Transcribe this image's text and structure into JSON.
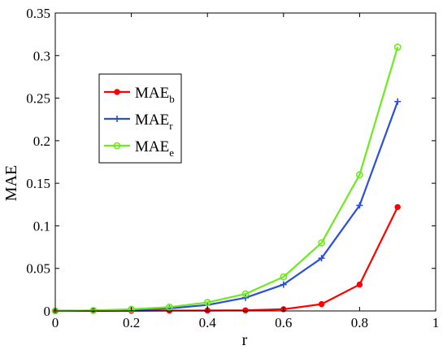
{
  "chart_data": {
    "type": "line",
    "xlabel": "r",
    "ylabel": "MAE",
    "xlim": [
      0,
      1
    ],
    "ylim": [
      0,
      0.35
    ],
    "x_ticks": [
      0,
      0.2,
      0.4,
      0.6,
      0.8,
      1
    ],
    "x_tick_labels": [
      "0",
      "0.2",
      "0.4",
      "0.6",
      "0.8",
      "1"
    ],
    "y_ticks": [
      0,
      0.05,
      0.1,
      0.15,
      0.2,
      0.25,
      0.3,
      0.35
    ],
    "y_tick_labels": [
      "0",
      "0.05",
      "0.1",
      "0.15",
      "0.2",
      "0.25",
      "0.3",
      "0.35"
    ],
    "x": [
      0,
      0.1,
      0.2,
      0.3,
      0.4,
      0.5,
      0.6,
      0.7,
      0.8,
      0.9
    ],
    "series": [
      {
        "name_main": "MAE",
        "name_sub": "b",
        "color": "#ff0000",
        "marker": "dot",
        "values": [
          0,
          0,
          0.0002,
          0.0004,
          0.0005,
          0.0007,
          0.002,
          0.008,
          0.031,
          0.122
        ]
      },
      {
        "name_main": "MAE",
        "name_sub": "r",
        "color": "#2a4fd8",
        "marker": "plus",
        "values": [
          0,
          0.0005,
          0.0015,
          0.003,
          0.007,
          0.0155,
          0.031,
          0.062,
          0.124,
          0.246
        ]
      },
      {
        "name_main": "MAE",
        "name_sub": "e",
        "color": "#6eea1e",
        "marker": "circle",
        "values": [
          0,
          0.0006,
          0.002,
          0.0045,
          0.01,
          0.02,
          0.04,
          0.08,
          0.16,
          0.31
        ]
      }
    ],
    "legend_position": "upper-left",
    "grid": false
  }
}
